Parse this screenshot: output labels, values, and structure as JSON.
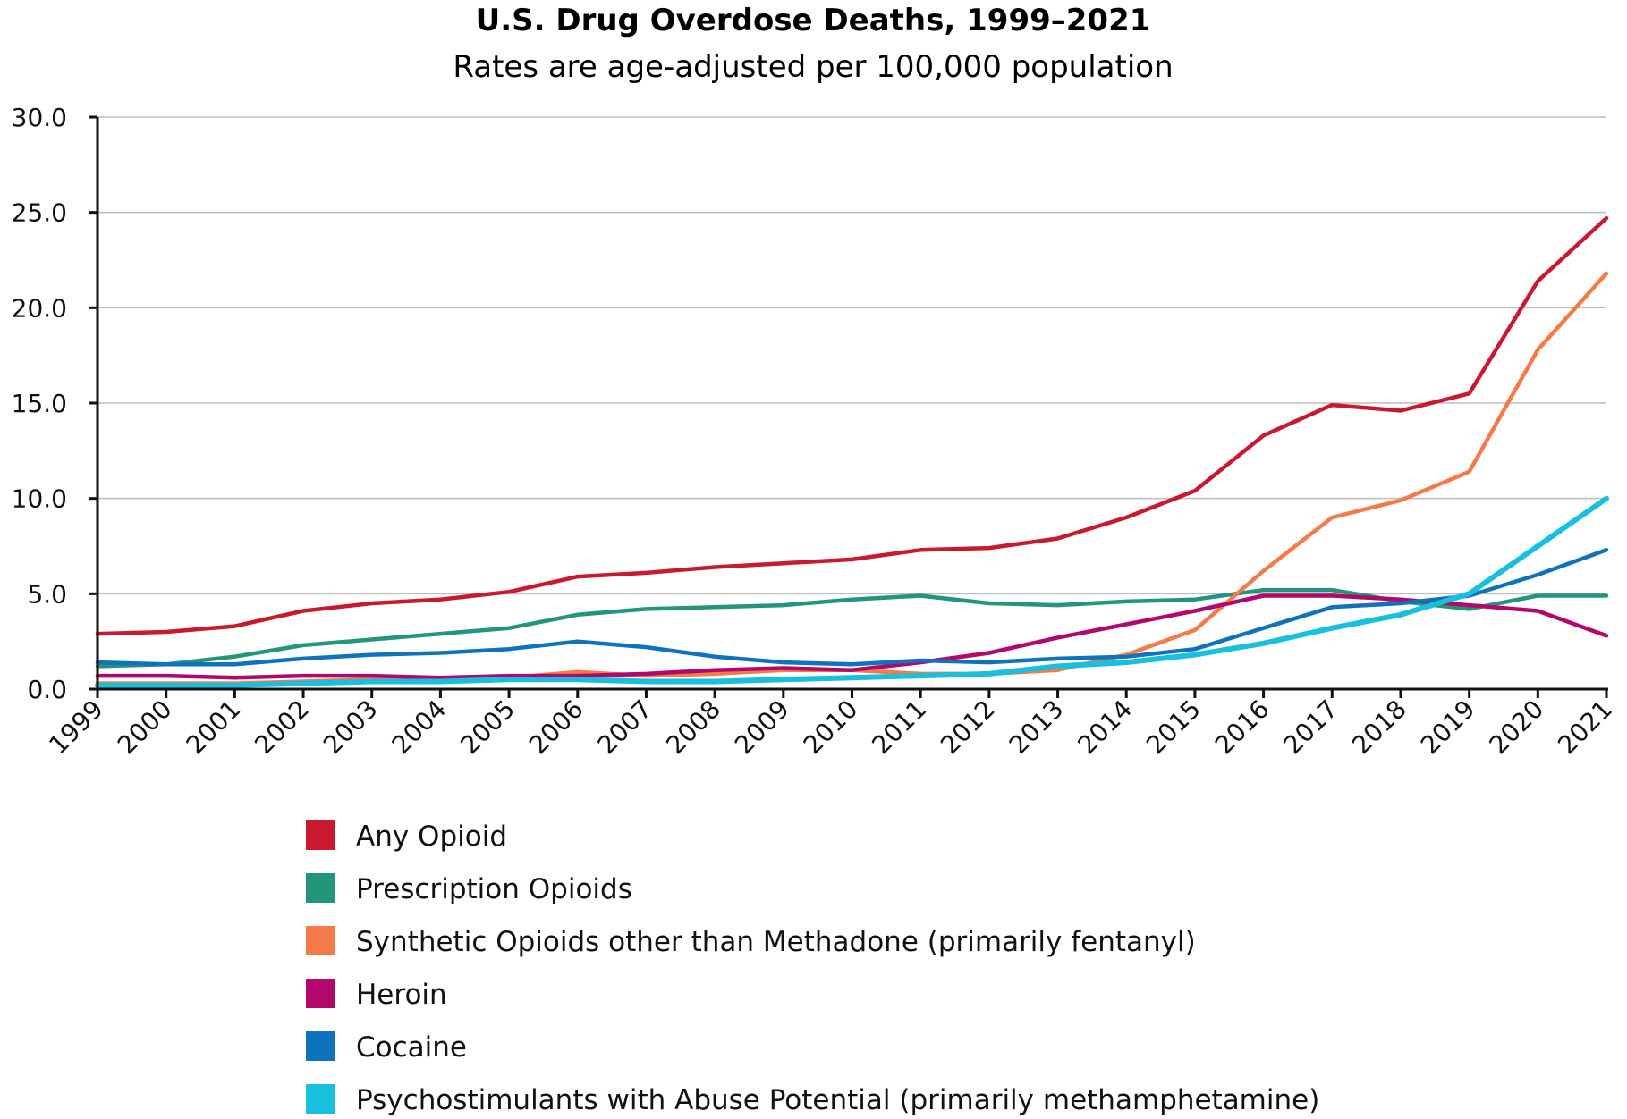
{
  "chart_data": {
    "type": "line",
    "title": "U.S. Drug Overdose Deaths, 1999–2021",
    "subtitle": "Rates are age-adjusted per 100,000 population",
    "xlabel": "",
    "ylabel": "",
    "x": [
      1999,
      2000,
      2001,
      2002,
      2003,
      2004,
      2005,
      2006,
      2007,
      2008,
      2009,
      2010,
      2011,
      2012,
      2013,
      2014,
      2015,
      2016,
      2017,
      2018,
      2019,
      2020,
      2021
    ],
    "x_tick_labels": [
      "1999",
      "2000",
      "2001",
      "2002",
      "2003",
      "2004",
      "2005",
      "2006",
      "2007",
      "2008",
      "2009",
      "2010",
      "2011",
      "2012",
      "2013",
      "2014",
      "2015",
      "2016",
      "2017",
      "2018",
      "2019",
      "2020",
      "2021"
    ],
    "ylim": [
      0,
      30
    ],
    "y_ticks": [
      0,
      5,
      10,
      15,
      20,
      25,
      30
    ],
    "y_tick_labels": [
      "0.0",
      "5.0",
      "10.0",
      "15.0",
      "20.0",
      "25.0",
      "30.0"
    ],
    "grid": "horizontal",
    "legend_position": "bottom",
    "series": [
      {
        "name": "Any Opioid",
        "color": "#c8192e",
        "values": [
          2.9,
          3.0,
          3.3,
          4.1,
          4.5,
          4.7,
          5.1,
          5.9,
          6.1,
          6.4,
          6.6,
          6.8,
          7.3,
          7.4,
          7.9,
          9.0,
          10.4,
          13.3,
          14.9,
          14.6,
          15.5,
          21.4,
          24.7
        ]
      },
      {
        "name": "Prescription Opioids",
        "color": "#22957a",
        "values": [
          1.2,
          1.3,
          1.7,
          2.3,
          2.6,
          2.9,
          3.2,
          3.9,
          4.2,
          4.3,
          4.4,
          4.7,
          4.9,
          4.5,
          4.4,
          4.6,
          4.7,
          5.2,
          5.2,
          4.6,
          4.2,
          4.9,
          4.9
        ]
      },
      {
        "name": "Synthetic Opioids other than Methadone (primarily fentanyl)",
        "color": "#f47b47",
        "values": [
          0.3,
          0.3,
          0.3,
          0.4,
          0.5,
          0.6,
          0.6,
          0.9,
          0.7,
          0.8,
          1.0,
          1.0,
          0.8,
          0.8,
          1.0,
          1.8,
          3.1,
          6.2,
          9.0,
          9.9,
          11.4,
          17.8,
          21.8
        ]
      },
      {
        "name": "Heroin",
        "color": "#b2086c",
        "values": [
          0.7,
          0.7,
          0.6,
          0.7,
          0.7,
          0.6,
          0.7,
          0.7,
          0.8,
          1.0,
          1.1,
          1.0,
          1.4,
          1.9,
          2.7,
          3.4,
          4.1,
          4.9,
          4.9,
          4.7,
          4.4,
          4.1,
          2.8
        ]
      },
      {
        "name": "Cocaine",
        "color": "#0f72bd",
        "values": [
          1.4,
          1.3,
          1.3,
          1.6,
          1.8,
          1.9,
          2.1,
          2.5,
          2.2,
          1.7,
          1.4,
          1.3,
          1.5,
          1.4,
          1.6,
          1.7,
          2.1,
          3.2,
          4.3,
          4.5,
          4.9,
          6.0,
          7.3
        ]
      },
      {
        "name": "Psychostimulants with Abuse Potential (primarily methamphetamine)",
        "color": "#18c0dd",
        "values": [
          0.2,
          0.2,
          0.2,
          0.3,
          0.4,
          0.4,
          0.5,
          0.5,
          0.4,
          0.4,
          0.5,
          0.6,
          0.7,
          0.8,
          1.2,
          1.4,
          1.8,
          2.4,
          3.2,
          3.9,
          5.0,
          7.5,
          10.0
        ]
      }
    ]
  }
}
